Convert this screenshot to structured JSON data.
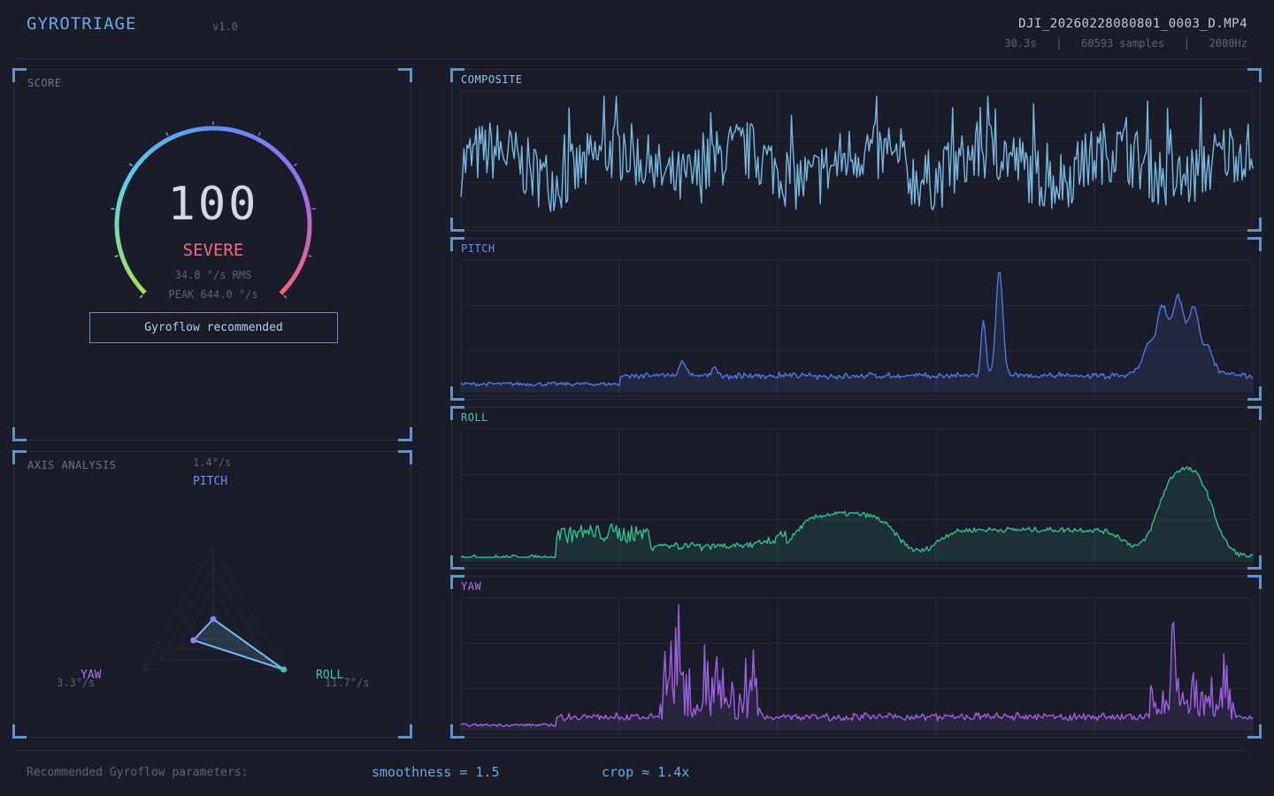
{
  "header": {
    "title": "GYROTRIAGE",
    "version": "v1.0",
    "file_name": "DJI_20260228080801_0003_D.MP4",
    "meta": "30.3s   |   60593 samples   |   2000Hz"
  },
  "score_panel": {
    "label": "SCORE",
    "score": "100",
    "severity": "SEVERE",
    "rms": "34.8 °/s RMS",
    "peak": "PEAK 644.0 °/s",
    "recommendation": "Gyroflow recommended",
    "score_fraction": 1.0,
    "gauge_colors": [
      "#a6e05a",
      "#5fd0e8",
      "#5f8ff0",
      "#9b6cf0",
      "#f0637d"
    ]
  },
  "axis_panel": {
    "label": "AXIS ANALYSIS",
    "axes": [
      {
        "name": "PITCH",
        "value": "1.4°/s",
        "level": 0.12,
        "color": "#6a8cf0"
      },
      {
        "name": "ROLL",
        "value": "11.7°/s",
        "level": 1.0,
        "color": "#3ec79b"
      },
      {
        "name": "YAW",
        "value": "3.3°/s",
        "level": 0.28,
        "color": "#b072ea"
      }
    ],
    "polygon_color": "#78b8f0"
  },
  "charts": [
    {
      "label": "COMPOSITE",
      "color": "#78b6de",
      "label_color": "#8fc4ea",
      "pattern": "composite",
      "fill": false
    },
    {
      "label": "PITCH",
      "color": "#4f76e0",
      "label_color": "#6a8cf0",
      "pattern": "pitch",
      "fill": true
    },
    {
      "label": "ROLL",
      "color": "#2fbf8f",
      "label_color": "#3ec79b",
      "pattern": "roll",
      "fill": true
    },
    {
      "label": "YAW",
      "color": "#9d5fe0",
      "label_color": "#b072ea",
      "pattern": "yaw",
      "fill": true
    }
  ],
  "footer": {
    "label": "Recommended Gyroflow parameters:",
    "smoothness": "smoothness = 1.5",
    "crop": "crop ≈ 1.4x"
  }
}
